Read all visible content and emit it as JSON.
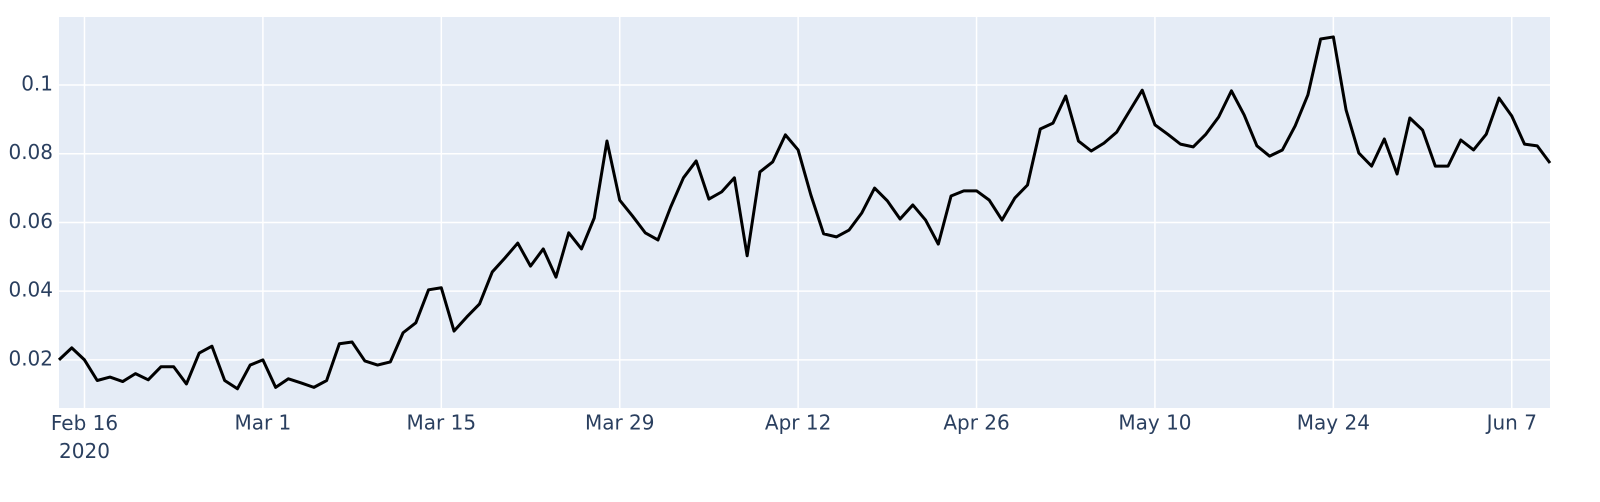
{
  "chart_data": {
    "type": "line",
    "x": [
      "2020-02-14",
      "2020-02-15",
      "2020-02-16",
      "2020-02-17",
      "2020-02-18",
      "2020-02-19",
      "2020-02-20",
      "2020-02-21",
      "2020-02-22",
      "2020-02-23",
      "2020-02-24",
      "2020-02-25",
      "2020-02-26",
      "2020-02-27",
      "2020-02-28",
      "2020-02-29",
      "2020-03-01",
      "2020-03-02",
      "2020-03-03",
      "2020-03-04",
      "2020-03-05",
      "2020-03-06",
      "2020-03-07",
      "2020-03-08",
      "2020-03-09",
      "2020-03-10",
      "2020-03-11",
      "2020-03-12",
      "2020-03-13",
      "2020-03-14",
      "2020-03-15",
      "2020-03-16",
      "2020-03-17",
      "2020-03-18",
      "2020-03-19",
      "2020-03-20",
      "2020-03-21",
      "2020-03-22",
      "2020-03-23",
      "2020-03-24",
      "2020-03-25",
      "2020-03-26",
      "2020-03-27",
      "2020-03-28",
      "2020-03-29",
      "2020-03-30",
      "2020-03-31",
      "2020-04-01",
      "2020-04-02",
      "2020-04-03",
      "2020-04-04",
      "2020-04-05",
      "2020-04-06",
      "2020-04-07",
      "2020-04-08",
      "2020-04-09",
      "2020-04-10",
      "2020-04-11",
      "2020-04-12",
      "2020-04-13",
      "2020-04-14",
      "2020-04-15",
      "2020-04-16",
      "2020-04-17",
      "2020-04-18",
      "2020-04-19",
      "2020-04-20",
      "2020-04-21",
      "2020-04-22",
      "2020-04-23",
      "2020-04-24",
      "2020-04-25",
      "2020-04-26",
      "2020-04-27",
      "2020-04-28",
      "2020-04-29",
      "2020-04-30",
      "2020-05-01",
      "2020-05-02",
      "2020-05-03",
      "2020-05-04",
      "2020-05-05",
      "2020-05-06",
      "2020-05-07",
      "2020-05-08",
      "2020-05-09",
      "2020-05-10",
      "2020-05-11",
      "2020-05-12",
      "2020-05-13",
      "2020-05-14",
      "2020-05-15",
      "2020-05-16",
      "2020-05-17",
      "2020-05-18",
      "2020-05-19",
      "2020-05-20",
      "2020-05-21",
      "2020-05-22",
      "2020-05-23",
      "2020-05-24",
      "2020-05-25",
      "2020-05-26",
      "2020-05-27",
      "2020-05-28",
      "2020-05-29",
      "2020-05-30",
      "2020-05-31",
      "2020-06-01",
      "2020-06-02",
      "2020-06-03",
      "2020-06-04",
      "2020-06-05",
      "2020-06-06",
      "2020-06-07",
      "2020-06-08",
      "2020-06-09",
      "2020-06-10"
    ],
    "series": [
      {
        "color": "#000000",
        "values": [
          0.02,
          0.0235,
          0.02,
          0.014,
          0.015,
          0.0137,
          0.016,
          0.0142,
          0.018,
          0.018,
          0.013,
          0.022,
          0.024,
          0.014,
          0.0116,
          0.0185,
          0.02,
          0.012,
          0.0145,
          0.0133,
          0.012,
          0.014,
          0.0247,
          0.0252,
          0.0197,
          0.0185,
          0.0194,
          0.0279,
          0.0308,
          0.0404,
          0.041,
          0.0284,
          0.0325,
          0.0363,
          0.0456,
          0.0497,
          0.054,
          0.0473,
          0.0523,
          0.0441,
          0.057,
          0.0523,
          0.0613,
          0.0837,
          0.0665,
          0.0619,
          0.057,
          0.0549,
          0.0645,
          0.073,
          0.0779,
          0.0668,
          0.0689,
          0.073,
          0.0503,
          0.0747,
          0.0776,
          0.0855,
          0.0811,
          0.068,
          0.0567,
          0.0558,
          0.0578,
          0.0628,
          0.07,
          0.0663,
          0.061,
          0.0651,
          0.0607,
          0.0537,
          0.0677,
          0.0692,
          0.0692,
          0.0665,
          0.0607,
          0.0671,
          0.0709,
          0.0872,
          0.0889,
          0.0968,
          0.0837,
          0.0808,
          0.0831,
          0.0863,
          0.0924,
          0.0985,
          0.0884,
          0.0857,
          0.0828,
          0.082,
          0.0857,
          0.0907,
          0.0983,
          0.0913,
          0.0823,
          0.0793,
          0.0811,
          0.0881,
          0.0971,
          0.1134,
          0.114,
          0.0927,
          0.0802,
          0.0764,
          0.0843,
          0.0741,
          0.0904,
          0.0869,
          0.0764,
          0.0764,
          0.084,
          0.0811,
          0.0857,
          0.0962,
          0.091,
          0.0828,
          0.0823,
          0.0773
        ]
      }
    ],
    "xlim": [
      "2020-02-14",
      "2020-06-10"
    ],
    "xticks": [
      {
        "value": "2020-02-16",
        "label": "Feb 16\n2020"
      },
      {
        "value": "2020-03-01",
        "label": "Mar 1"
      },
      {
        "value": "2020-03-15",
        "label": "Mar 15"
      },
      {
        "value": "2020-03-29",
        "label": "Mar 29"
      },
      {
        "value": "2020-04-12",
        "label": "Apr 12"
      },
      {
        "value": "2020-04-26",
        "label": "Apr 26"
      },
      {
        "value": "2020-05-10",
        "label": "May 10"
      },
      {
        "value": "2020-05-24",
        "label": "May 24"
      },
      {
        "value": "2020-06-07",
        "label": "Jun 7"
      }
    ],
    "ylim": [
      0.006,
      0.1198
    ],
    "yticks": [
      0.02,
      0.04,
      0.06,
      0.08,
      0.1
    ],
    "grid": true
  }
}
